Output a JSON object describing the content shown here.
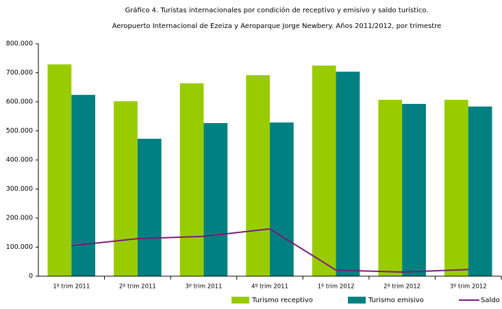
{
  "chart_data": {
    "type": "bar_line",
    "title": "Gráfico 4. Turistas internacionales por condición de receptivo y emisivo y saldo turístico.",
    "subtitle": "Aeropuerto Internacional de Ezeiza y Aeroparque Jorge Newbery. Años 2011/2012, por trimestre",
    "categories": [
      "1º trim 2011",
      "2º trim 2011",
      "3º trim 2011",
      "4º trim 2011",
      "1º trim 2012",
      "2º trim 2012",
      "3º trim 2012"
    ],
    "series": [
      {
        "name": "Turismo receptivo",
        "type": "bar",
        "color": "#99cc00",
        "values": [
          729000,
          602000,
          664000,
          692000,
          725000,
          607000,
          607000
        ]
      },
      {
        "name": "Turismo emisivo",
        "type": "bar",
        "color": "#008080",
        "values": [
          624000,
          473000,
          527000,
          529000,
          704000,
          593000,
          584000
        ]
      },
      {
        "name": "Saldo",
        "type": "line",
        "color": "#7a1a7a",
        "values": [
          105000,
          129000,
          137000,
          163000,
          21000,
          14000,
          23000
        ]
      }
    ],
    "ylim": [
      0,
      800000
    ],
    "yticks": [
      0,
      {
        "value": 100000,
        "label": "100.000"
      },
      {
        "value": 200000,
        "label": "200.000"
      },
      {
        "value": 300000,
        "label": "300.000"
      },
      {
        "value": 400000,
        "label": "400.000"
      },
      {
        "value": 500000,
        "label": "500.000"
      },
      {
        "value": 600000,
        "label": "600.000"
      },
      {
        "value": 700000,
        "label": "700.000"
      },
      {
        "value": 800000,
        "label": "800.000"
      }
    ],
    "grid": false,
    "legend": "bottom"
  }
}
